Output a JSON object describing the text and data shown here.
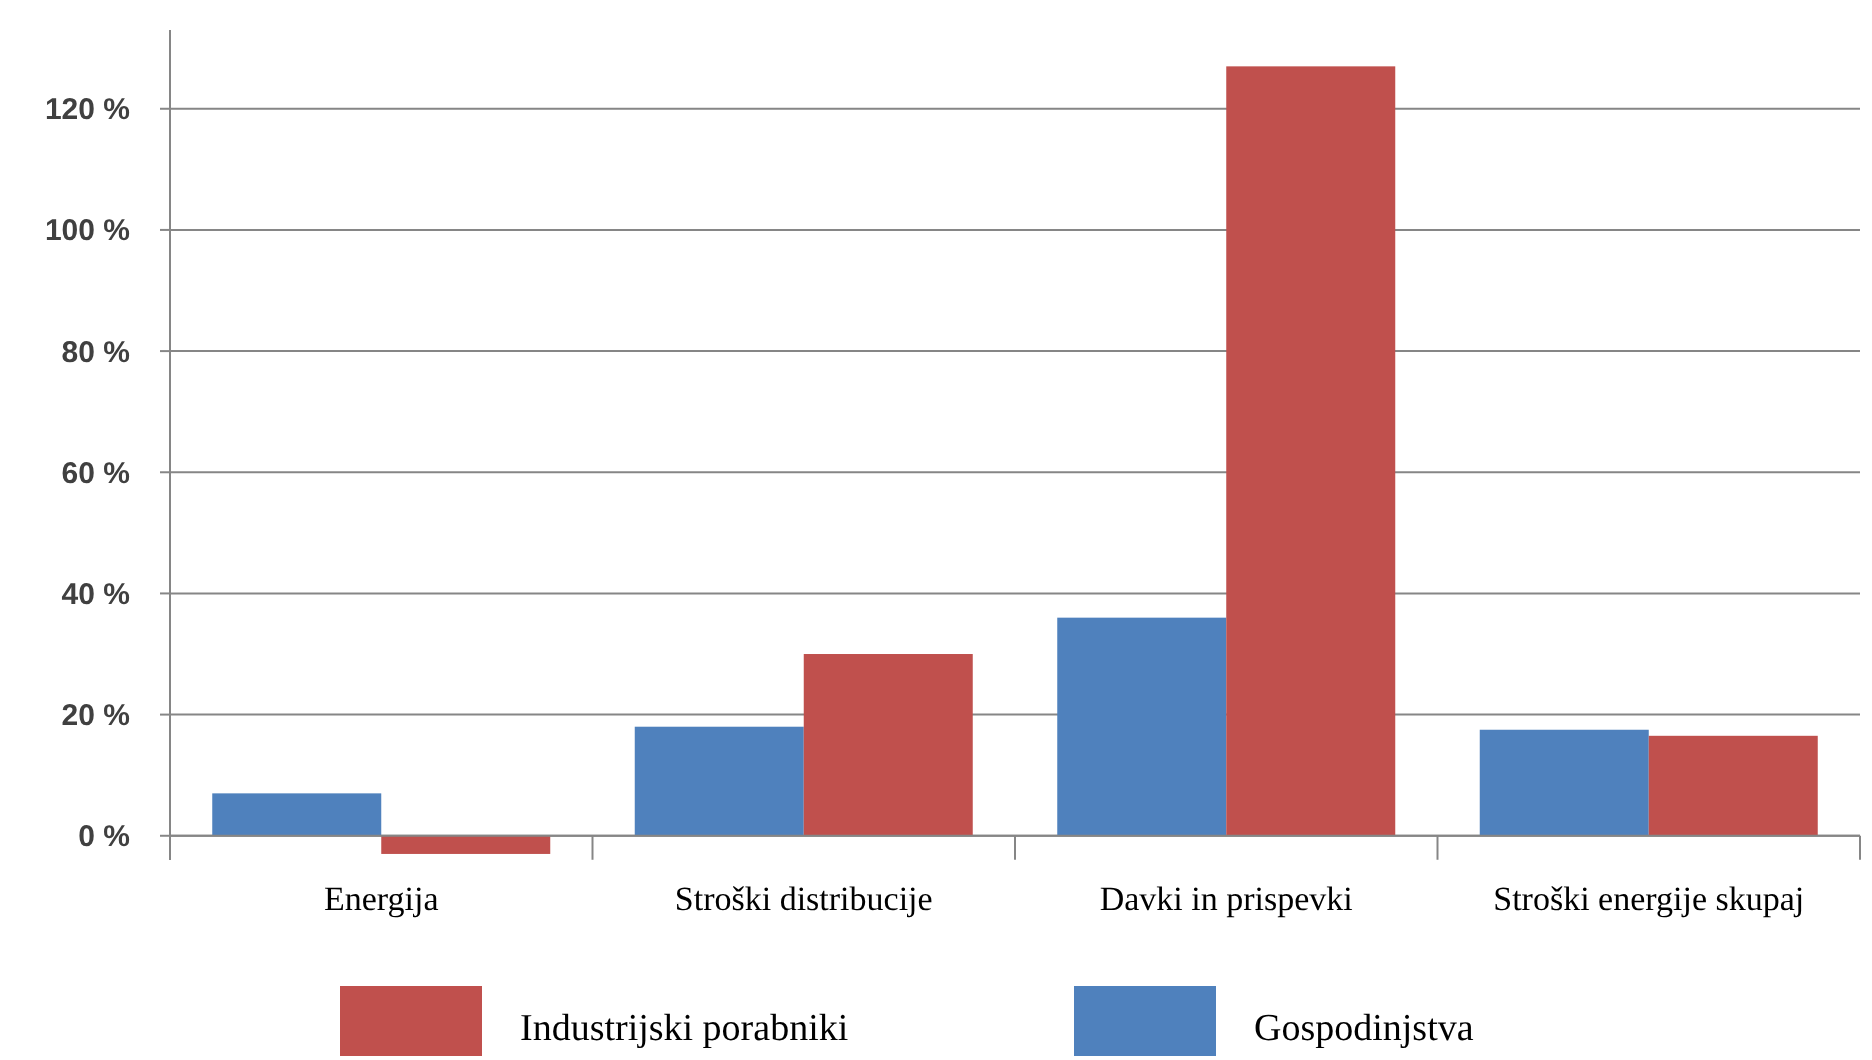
{
  "chart_data": {
    "type": "bar",
    "categories": [
      "Energija",
      "Stroški distribucije",
      "Davki in prispevki",
      "Stroški energije skupaj"
    ],
    "series": [
      {
        "name": "Gospodinjstva",
        "color": "#4f81bd",
        "values": [
          7,
          18,
          36,
          17.5
        ]
      },
      {
        "name": "Industrijski porabniki",
        "color": "#c0504d",
        "values": [
          -3,
          30,
          127,
          16.5
        ]
      }
    ],
    "ylim": [
      -4,
      133
    ],
    "yticks": [
      {
        "value": 0,
        "label": "0 %"
      },
      {
        "value": 20,
        "label": "20 %"
      },
      {
        "value": 40,
        "label": "40 %"
      },
      {
        "value": 60,
        "label": "60 %"
      },
      {
        "value": 80,
        "label": "80 %"
      },
      {
        "value": 100,
        "label": "100 %"
      },
      {
        "value": 120,
        "label": "120 %"
      }
    ],
    "grid": "y",
    "legend": "bottom"
  }
}
